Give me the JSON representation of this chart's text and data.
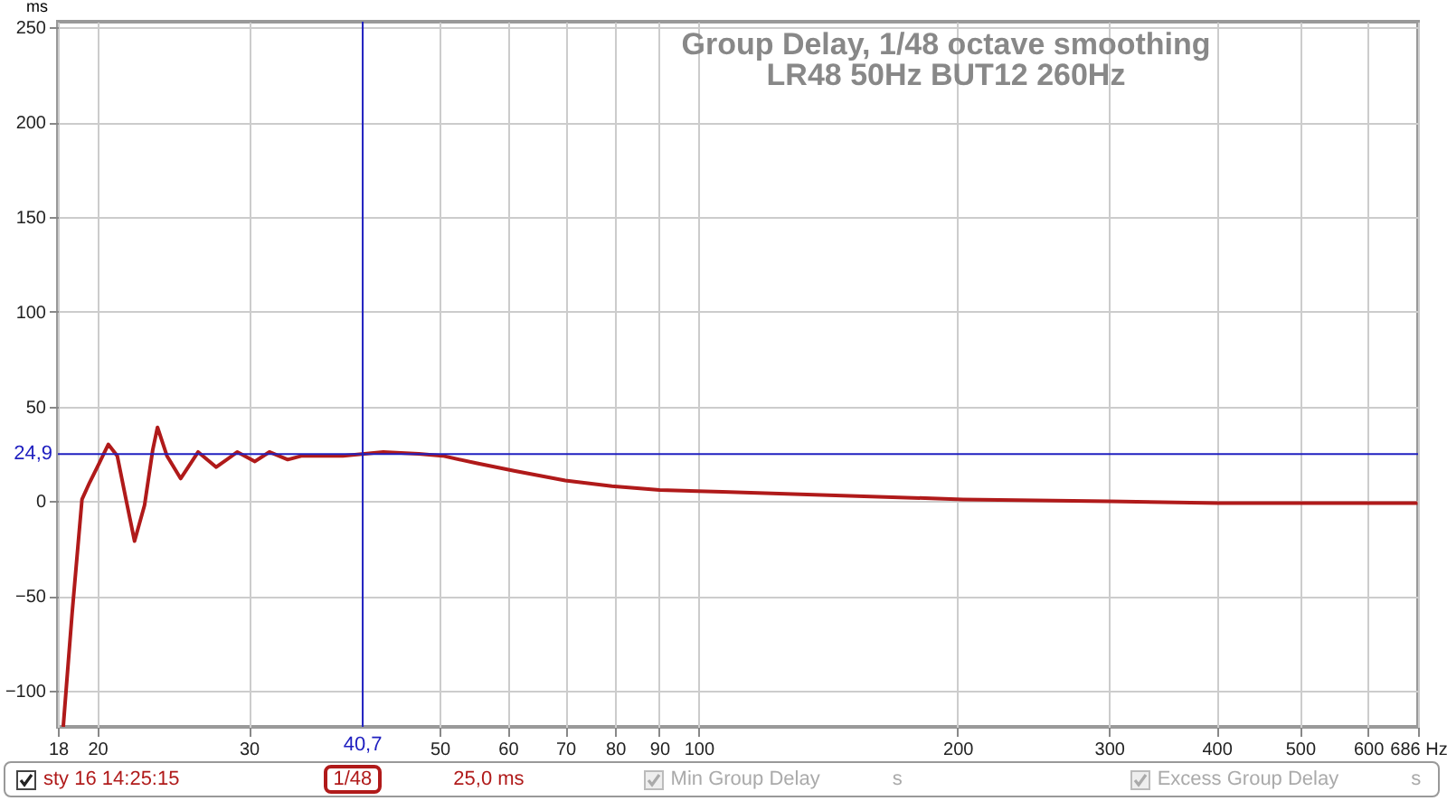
{
  "chart_data": {
    "type": "line",
    "title": "Group Delay, 1/48 octave smoothing",
    "subtitle": "LR48 50Hz BUT12 260Hz",
    "ylabel": "ms",
    "x": [
      18.26,
      18.7,
      19.2,
      19.6,
      20.1,
      20.6,
      21.1,
      21.6,
      22.1,
      22.7,
      23.2,
      23.5,
      24.1,
      25.0,
      26.2,
      27.5,
      29.1,
      30.5,
      31.7,
      33.3,
      34.6,
      38.6,
      43.0,
      47.3,
      50.4,
      55.3,
      61.2,
      70.0,
      79.3,
      90.1,
      106.6,
      203,
      300,
      402,
      685
    ],
    "series": [
      {
        "name": "sty 16 14:25:15",
        "color": "#b01a1a",
        "values": [
          -119,
          -59,
          1,
          10,
          20,
          30,
          24,
          1,
          -21,
          -2,
          27,
          39,
          24,
          12,
          26,
          18,
          26,
          21,
          26,
          22,
          24,
          24,
          26,
          25,
          24,
          20,
          16,
          11,
          8,
          6,
          5,
          1,
          0,
          -1,
          -1
        ]
      }
    ],
    "xlim": [
      18,
      686
    ],
    "ylim": [
      -119,
      253
    ],
    "log": "x",
    "xticks": [
      18,
      20,
      30,
      50,
      60,
      70,
      80,
      90,
      100,
      200,
      300,
      400,
      500,
      600,
      {
        "value": 686,
        "label": "686 Hz"
      }
    ],
    "yticks": [
      -100,
      -50,
      0,
      50,
      100,
      150,
      200,
      250
    ],
    "grid": true,
    "legend": "bottom",
    "ref_lines": [
      {
        "axis": "y",
        "value": 24.9,
        "label": "24,9",
        "color": "#2020c0"
      },
      {
        "axis": "x",
        "value": 40.7,
        "label": "40,7",
        "color": "#2020c0"
      }
    ],
    "annotations": [
      "1/48",
      "25,0 ms",
      "Min Group Delay",
      "s",
      "Excess Group Delay",
      "s"
    ]
  }
}
